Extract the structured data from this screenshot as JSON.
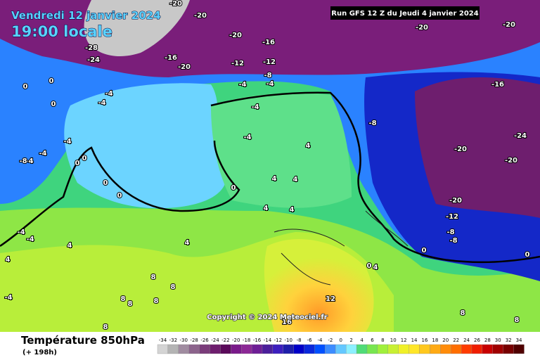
{
  "header": {
    "date": "Vendredi 12 janvier 2024",
    "time": "19:00 locale",
    "run": "Run GFS 12 Z du Jeudi 4 janvier 2024"
  },
  "copyright": "Copyright © 2024 Meteociel.fr",
  "footer": {
    "title": "Température 850hPa",
    "lead": "(+ 198h)"
  },
  "map_labels": [
    -20,
    -20,
    -20,
    -16,
    -16,
    -20,
    -28,
    -24,
    -12,
    -12,
    -8,
    -4,
    -4,
    -4,
    -4,
    0,
    0,
    0,
    -4,
    -4,
    -8,
    -20,
    -20,
    -16,
    -24,
    -20,
    -20,
    -20,
    -12,
    -8,
    -8,
    0,
    0,
    -4,
    -4,
    -4,
    -8,
    0,
    0,
    0,
    0,
    0,
    4,
    4,
    4,
    4,
    -4,
    -4,
    4,
    -4,
    8,
    8,
    8,
    8,
    8,
    8,
    12,
    16,
    8,
    8,
    4,
    4,
    4,
    0,
    4
  ],
  "colorbar": {
    "ticks": [
      -34,
      -32,
      -30,
      -28,
      -26,
      -24,
      -22,
      -20,
      -18,
      -16,
      -14,
      -12,
      -10,
      -8,
      -6,
      -4,
      -2,
      0,
      2,
      4,
      6,
      8,
      10,
      12,
      14,
      16,
      18,
      20,
      22,
      24,
      26,
      28,
      30,
      32,
      34
    ],
    "colors": [
      "#d4d4d4",
      "#b4b4b4",
      "#a08ca0",
      "#8c648c",
      "#7a3c7a",
      "#6e1e6e",
      "#5a0a5a",
      "#7a1a8a",
      "#8c2896",
      "#6e1e96",
      "#4b1e9b",
      "#3c1ebe",
      "#1e1eaa",
      "#0000c8",
      "#0a28dc",
      "#0050ff",
      "#3c8cff",
      "#64c8ff",
      "#8cf0ff",
      "#50dc78",
      "#78e650",
      "#a0f03c",
      "#c8f032",
      "#f0f028",
      "#ffe628",
      "#ffc81e",
      "#ffaa14",
      "#ff8c0a",
      "#ff6e00",
      "#ff3c00",
      "#f01e00",
      "#c80000",
      "#a00000",
      "#780000",
      "#500000"
    ]
  }
}
